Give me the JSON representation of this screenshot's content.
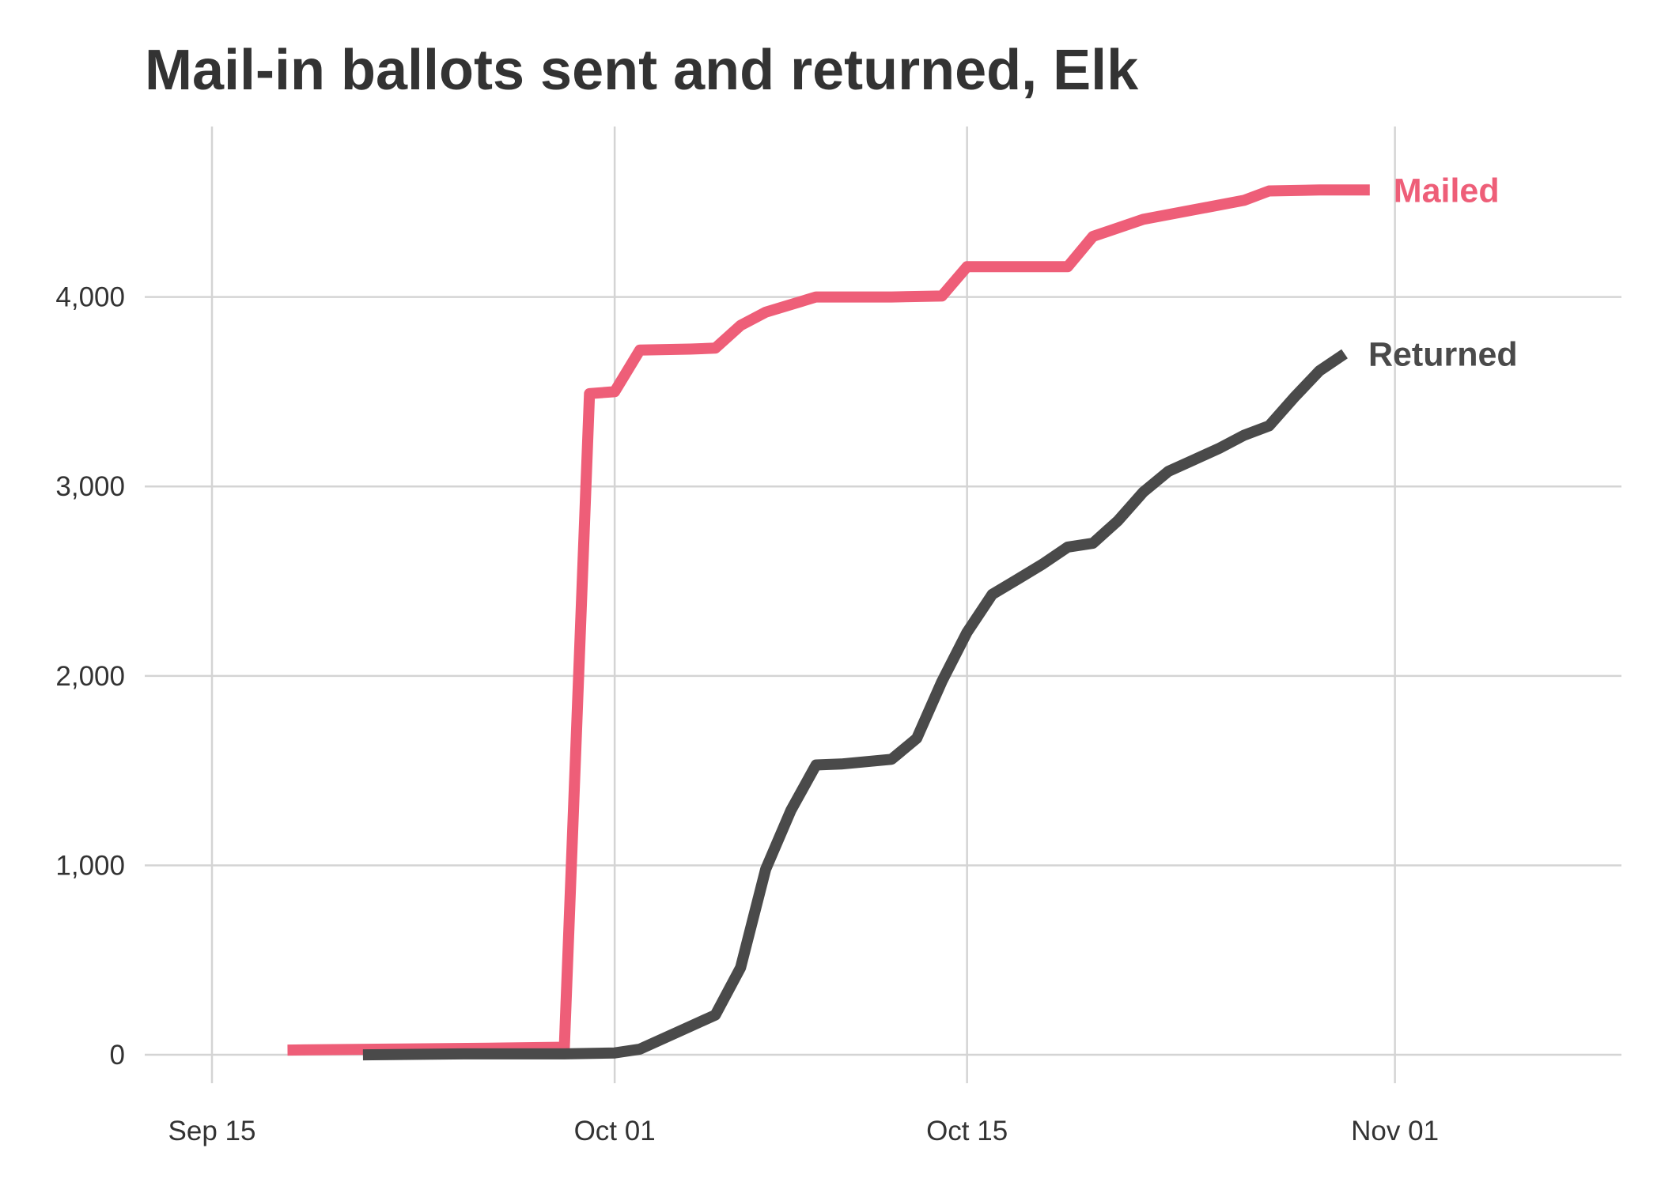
{
  "chart_data": {
    "type": "line",
    "title": "Mail-in ballots sent and returned, Elk",
    "xlabel": "",
    "ylabel": "",
    "x_axis": {
      "type": "date",
      "range": [
        "2020-09-15",
        "2020-11-10"
      ],
      "ticks": [
        {
          "value": "2020-09-15",
          "label": "Sep 15"
        },
        {
          "value": "2020-10-01",
          "label": "Oct 01"
        },
        {
          "value": "2020-10-15",
          "label": "Oct 15"
        },
        {
          "value": "2020-11-01",
          "label": "Nov 01"
        }
      ]
    },
    "y_axis": {
      "range": [
        -150,
        4900
      ],
      "ticks": [
        {
          "value": 0,
          "label": "0"
        },
        {
          "value": 1000,
          "label": "1,000"
        },
        {
          "value": 2000,
          "label": "2,000"
        },
        {
          "value": 3000,
          "label": "3,000"
        },
        {
          "value": 4000,
          "label": "4,000"
        }
      ]
    },
    "grid": true,
    "legend": "direct labels at line ends",
    "series": [
      {
        "name": "Mailed",
        "color": "#EE5E78",
        "points": [
          {
            "x": "2020-09-18",
            "y": 25
          },
          {
            "x": "2020-09-22",
            "y": 30
          },
          {
            "x": "2020-09-26",
            "y": 35
          },
          {
            "x": "2020-09-29",
            "y": 40
          },
          {
            "x": "2020-09-30",
            "y": 3490
          },
          {
            "x": "2020-10-01",
            "y": 3500
          },
          {
            "x": "2020-10-02",
            "y": 3720
          },
          {
            "x": "2020-10-04",
            "y": 3725
          },
          {
            "x": "2020-10-05",
            "y": 3730
          },
          {
            "x": "2020-10-06",
            "y": 3850
          },
          {
            "x": "2020-10-07",
            "y": 3920
          },
          {
            "x": "2020-10-09",
            "y": 4000
          },
          {
            "x": "2020-10-12",
            "y": 4000
          },
          {
            "x": "2020-10-14",
            "y": 4005
          },
          {
            "x": "2020-10-15",
            "y": 4160
          },
          {
            "x": "2020-10-17",
            "y": 4160
          },
          {
            "x": "2020-10-19",
            "y": 4160
          },
          {
            "x": "2020-10-20",
            "y": 4320
          },
          {
            "x": "2020-10-22",
            "y": 4410
          },
          {
            "x": "2020-10-24",
            "y": 4460
          },
          {
            "x": "2020-10-26",
            "y": 4510
          },
          {
            "x": "2020-10-27",
            "y": 4560
          },
          {
            "x": "2020-10-29",
            "y": 4565
          },
          {
            "x": "2020-10-31",
            "y": 4565
          }
        ]
      },
      {
        "name": "Returned",
        "color": "#4A4A4A",
        "points": [
          {
            "x": "2020-09-21",
            "y": 0
          },
          {
            "x": "2020-09-25",
            "y": 5
          },
          {
            "x": "2020-09-29",
            "y": 5
          },
          {
            "x": "2020-10-01",
            "y": 10
          },
          {
            "x": "2020-10-02",
            "y": 30
          },
          {
            "x": "2020-10-03",
            "y": 90
          },
          {
            "x": "2020-10-04",
            "y": 150
          },
          {
            "x": "2020-10-05",
            "y": 210
          },
          {
            "x": "2020-10-06",
            "y": 460
          },
          {
            "x": "2020-10-07",
            "y": 980
          },
          {
            "x": "2020-10-08",
            "y": 1290
          },
          {
            "x": "2020-10-09",
            "y": 1530
          },
          {
            "x": "2020-10-10",
            "y": 1535
          },
          {
            "x": "2020-10-12",
            "y": 1560
          },
          {
            "x": "2020-10-13",
            "y": 1670
          },
          {
            "x": "2020-10-14",
            "y": 1970
          },
          {
            "x": "2020-10-15",
            "y": 2230
          },
          {
            "x": "2020-10-16",
            "y": 2430
          },
          {
            "x": "2020-10-17",
            "y": 2510
          },
          {
            "x": "2020-10-18",
            "y": 2590
          },
          {
            "x": "2020-10-19",
            "y": 2680
          },
          {
            "x": "2020-10-20",
            "y": 2700
          },
          {
            "x": "2020-10-21",
            "y": 2820
          },
          {
            "x": "2020-10-22",
            "y": 2970
          },
          {
            "x": "2020-10-23",
            "y": 3080
          },
          {
            "x": "2020-10-24",
            "y": 3140
          },
          {
            "x": "2020-10-25",
            "y": 3200
          },
          {
            "x": "2020-10-26",
            "y": 3270
          },
          {
            "x": "2020-10-27",
            "y": 3320
          },
          {
            "x": "2020-10-28",
            "y": 3470
          },
          {
            "x": "2020-10-29",
            "y": 3610
          },
          {
            "x": "2020-10-30",
            "y": 3700
          }
        ]
      }
    ]
  }
}
